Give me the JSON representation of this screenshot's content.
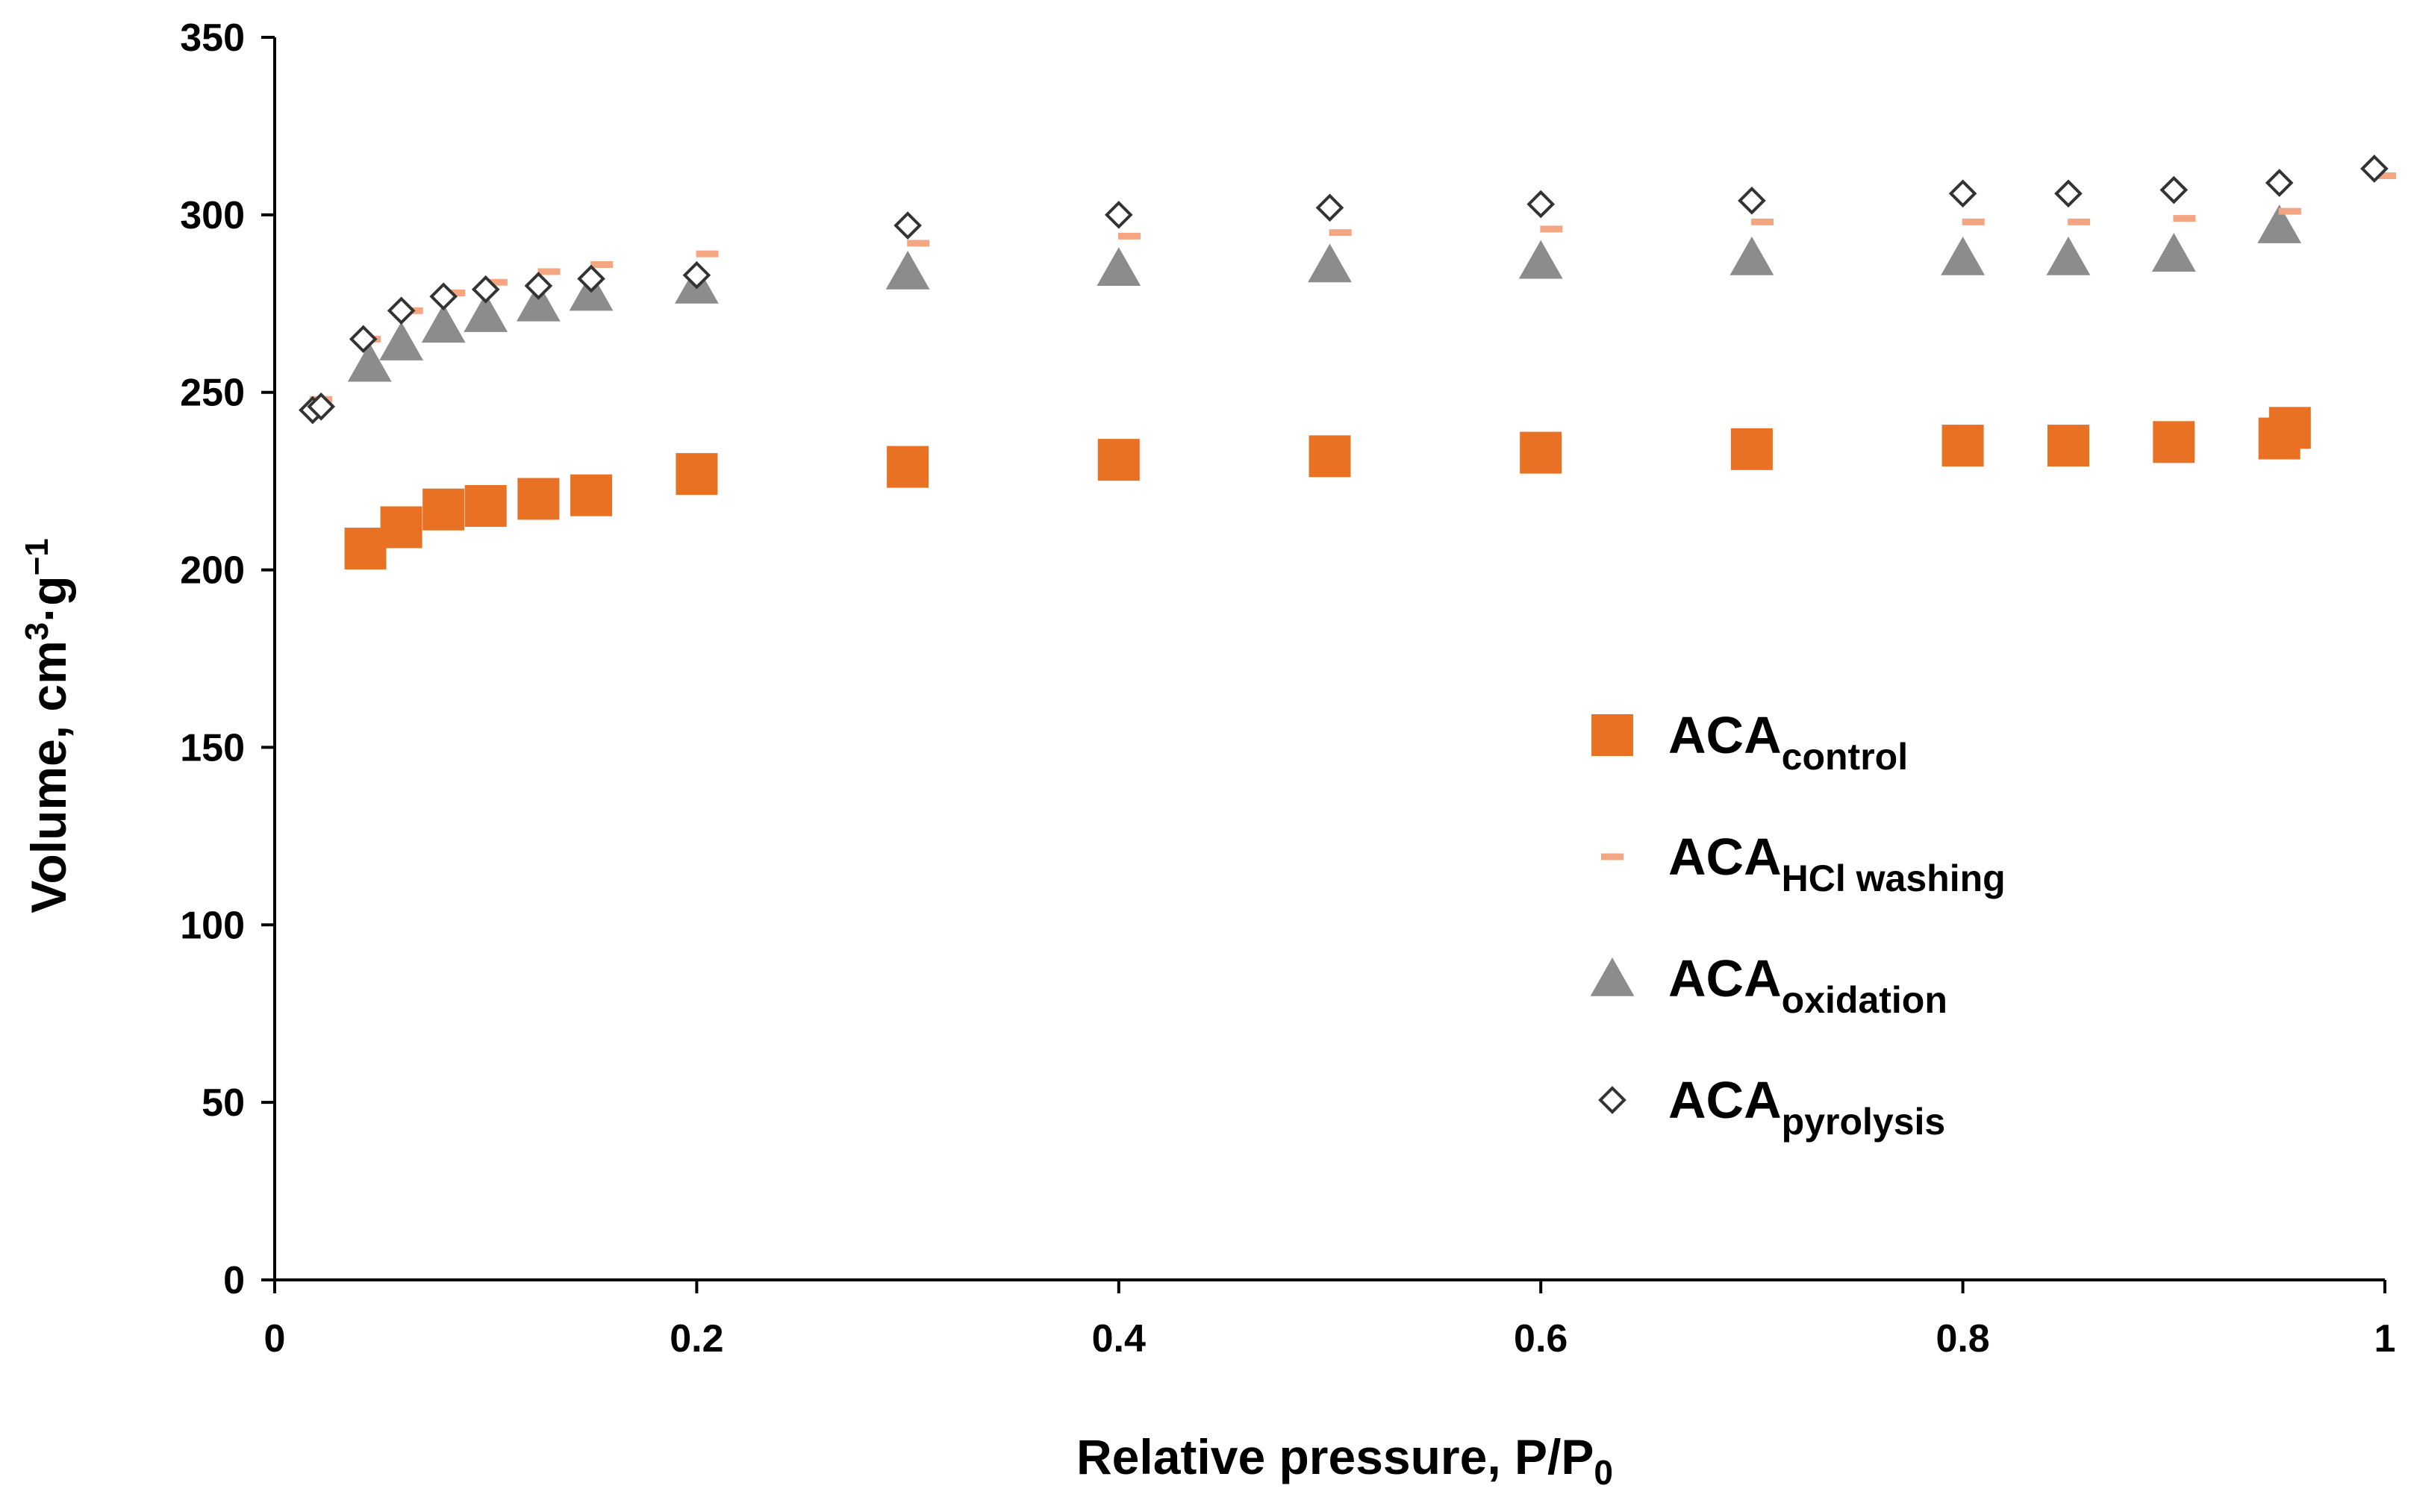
{
  "chart_data": {
    "type": "scatter",
    "title": "",
    "xlabel": "Relative pressure, P/P",
    "xlabel_sub": "0",
    "ylabel": "Volume, cm",
    "ylabel_sup1": "3",
    "ylabel_mid": "·g",
    "ylabel_sup2": "−1",
    "xlim": [
      0,
      1
    ],
    "ylim": [
      0,
      350
    ],
    "x_ticks": [
      0,
      0.2,
      0.4,
      0.6,
      0.8,
      1
    ],
    "x_tick_labels": [
      "0",
      "0.2",
      "0.4",
      "0.6",
      "0.8",
      "1"
    ],
    "y_ticks": [
      0,
      50,
      100,
      150,
      200,
      250,
      300,
      350
    ],
    "y_tick_labels": [
      "0",
      "50",
      "100",
      "150",
      "200",
      "250",
      "300",
      "350"
    ],
    "grid": false,
    "legend_position": "right-middle",
    "series": [
      {
        "name": "ACA",
        "sub": "control",
        "marker": "square",
        "color": "#E87124",
        "x": [
          0.043,
          0.06,
          0.08,
          0.1,
          0.125,
          0.15,
          0.2,
          0.3,
          0.4,
          0.5,
          0.6,
          0.7,
          0.8,
          0.85,
          0.9,
          0.95,
          0.955
        ],
        "y": [
          206,
          212,
          217,
          218,
          220,
          221,
          227,
          229,
          231,
          232,
          233,
          234,
          235,
          235,
          236,
          237,
          240
        ]
      },
      {
        "name": "ACA",
        "sub": "HCl washing",
        "marker": "dash",
        "color": "#F4A582",
        "x": [
          0.022,
          0.045,
          0.065,
          0.085,
          0.105,
          0.13,
          0.155,
          0.205,
          0.305,
          0.405,
          0.505,
          0.605,
          0.705,
          0.805,
          0.855,
          0.905,
          0.955,
          1.0
        ],
        "y": [
          248,
          265,
          273,
          278,
          281,
          284,
          286,
          289,
          292,
          294,
          295,
          296,
          298,
          298,
          298,
          299,
          301,
          311
        ]
      },
      {
        "name": "ACA",
        "sub": "oxidation",
        "marker": "triangle",
        "color": "#8C8C8C",
        "x": [
          0.045,
          0.06,
          0.08,
          0.1,
          0.125,
          0.15,
          0.2,
          0.3,
          0.4,
          0.5,
          0.6,
          0.7,
          0.8,
          0.85,
          0.9,
          0.95
        ],
        "y": [
          258,
          264,
          269,
          272,
          275,
          278,
          280,
          284,
          285,
          286,
          287,
          288,
          288,
          288,
          289,
          297
        ]
      },
      {
        "name": "ACA",
        "sub": "pyrolysis",
        "marker": "diamond",
        "color": "#333333",
        "x": [
          0.018,
          0.022,
          0.042,
          0.06,
          0.08,
          0.1,
          0.125,
          0.15,
          0.2,
          0.3,
          0.4,
          0.5,
          0.6,
          0.7,
          0.8,
          0.85,
          0.9,
          0.95,
          0.995
        ],
        "y": [
          245,
          246,
          265,
          273,
          277,
          279,
          280,
          282,
          283,
          297,
          300,
          302,
          303,
          304,
          306,
          306,
          307,
          309,
          313
        ]
      }
    ]
  }
}
